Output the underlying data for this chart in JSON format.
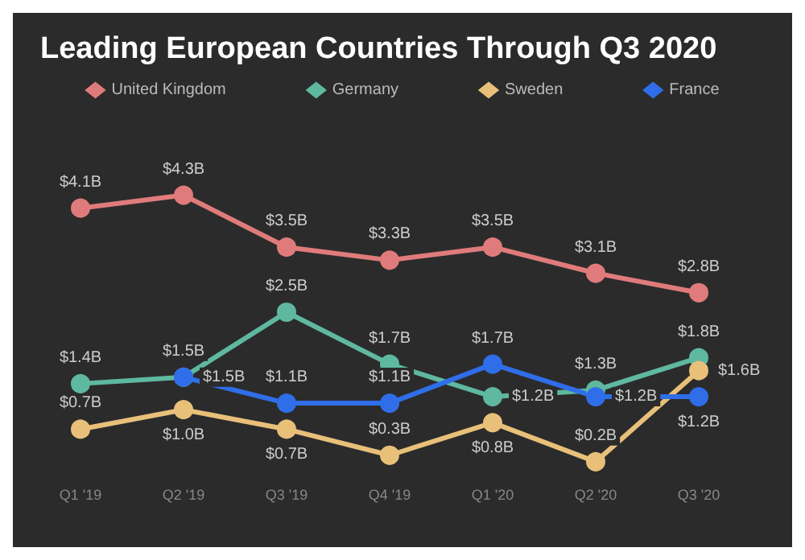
{
  "chart_data": {
    "type": "line",
    "title": "Leading European Countries Through Q3 2020",
    "categories": [
      "Q1 '19",
      "Q2 '19",
      "Q3 '19",
      "Q4 '19",
      "Q1 '20",
      "Q2 '20",
      "Q3 '20"
    ],
    "series": [
      {
        "name": "United Kingdom",
        "color": "#e07b7b",
        "values": [
          4.1,
          4.3,
          3.5,
          3.3,
          3.5,
          3.1,
          2.8
        ],
        "value_labels": [
          "$4.1B",
          "$4.3B",
          "$3.5B",
          "$3.3B",
          "$3.5B",
          "$3.1B",
          "$2.8B"
        ]
      },
      {
        "name": "Germany",
        "color": "#5fb8a0",
        "values": [
          1.4,
          1.5,
          2.5,
          1.7,
          1.2,
          1.3,
          1.8
        ],
        "value_labels": [
          "$1.4B",
          "$1.5B",
          "$2.5B",
          "$1.7B",
          "$1.2B",
          "$1.3B",
          "$1.8B"
        ]
      },
      {
        "name": "Sweden",
        "color": "#e8c07a",
        "values": [
          0.7,
          1.0,
          0.7,
          0.3,
          0.8,
          0.2,
          1.6
        ],
        "value_labels": [
          "$0.7B",
          "$1.0B",
          "$0.7B",
          "$0.3B",
          "$0.8B",
          "$0.2B",
          "$1.6B"
        ]
      },
      {
        "name": "France",
        "color": "#2f6ee8",
        "values": [
          null,
          1.5,
          1.1,
          1.1,
          1.7,
          1.2,
          1.2
        ],
        "value_labels": [
          null,
          "$1.5B",
          "$1.1B",
          "$1.1B",
          "$1.7B",
          "$1.2B",
          "$1.2B"
        ]
      }
    ],
    "legend": "top",
    "marker": "circle",
    "grid": false
  }
}
